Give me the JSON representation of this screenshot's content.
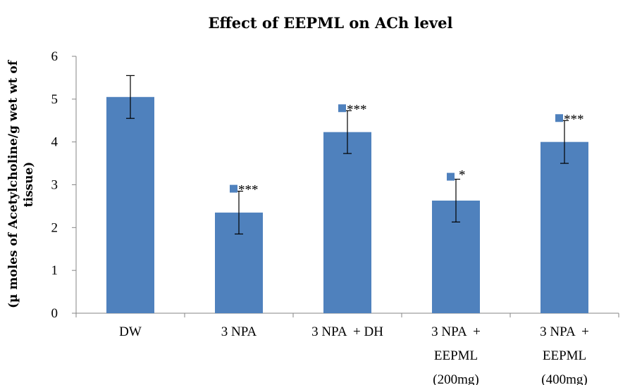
{
  "chart_data": {
    "type": "bar",
    "title": "Effect of EEPML on ACh level",
    "ylabel_lines": [
      "(µ moles of Acetylcholine/g wet wt of",
      "tissue)"
    ],
    "xlabel": "",
    "ylim": [
      0,
      6
    ],
    "yticks": [
      0,
      1,
      2,
      3,
      4,
      5,
      6
    ],
    "grid": false,
    "legend": "none",
    "bar_color": "#4f81bd",
    "marker_color": "#4f81bd",
    "categories": [
      {
        "lines": [
          "DW"
        ]
      },
      {
        "lines": [
          "3 NPA"
        ]
      },
      {
        "lines": [
          "3 NPA  + DH"
        ]
      },
      {
        "lines": [
          "3 NPA  +",
          "EEPML",
          "(200mg)"
        ]
      },
      {
        "lines": [
          "3 NPA  +",
          "EEPML",
          "(400mg)"
        ]
      }
    ],
    "values": [
      5.05,
      2.35,
      4.23,
      2.63,
      4.0
    ],
    "errors": [
      0.5,
      0.5,
      0.5,
      0.5,
      0.5
    ],
    "significance": [
      "",
      "***",
      "***",
      "*",
      "***"
    ]
  }
}
